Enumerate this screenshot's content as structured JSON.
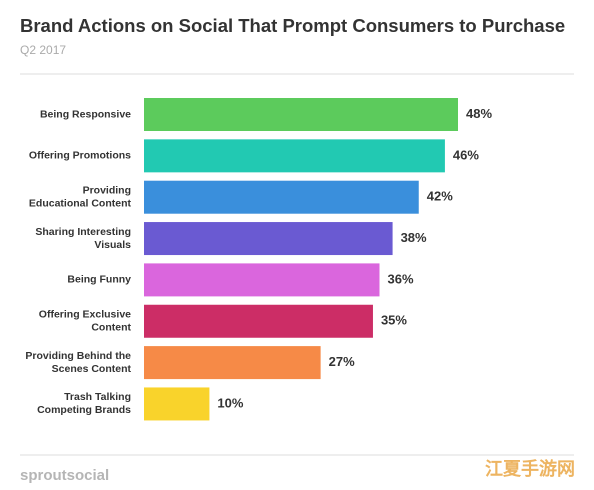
{
  "chart_data": {
    "type": "bar",
    "orientation": "horizontal",
    "title": "Brand Actions on Social That Prompt Consumers to Purchase",
    "subtitle": "Q2 2017",
    "categories": [
      [
        "Being Responsive"
      ],
      [
        "Offering Promotions"
      ],
      [
        "Providing",
        "Educational Content"
      ],
      [
        "Sharing Interesting",
        "Visuals"
      ],
      [
        "Being Funny"
      ],
      [
        "Offering Exclusive",
        "Content"
      ],
      [
        "Providing Behind the",
        "Scenes Content"
      ],
      [
        "Trash Talking",
        "Competing Brands"
      ]
    ],
    "values": [
      48,
      46,
      42,
      38,
      36,
      35,
      27,
      10
    ],
    "value_labels": [
      "48%",
      "46%",
      "42%",
      "38%",
      "36%",
      "35%",
      "27%",
      "10%"
    ],
    "colors": [
      "#5ccb5c",
      "#22c9b2",
      "#3a8fdc",
      "#6a5ad2",
      "#da66dd",
      "#cc2d66",
      "#f68a47",
      "#f9d32b"
    ],
    "footer": "sproutsocial",
    "watermark": "江夏手游网"
  }
}
